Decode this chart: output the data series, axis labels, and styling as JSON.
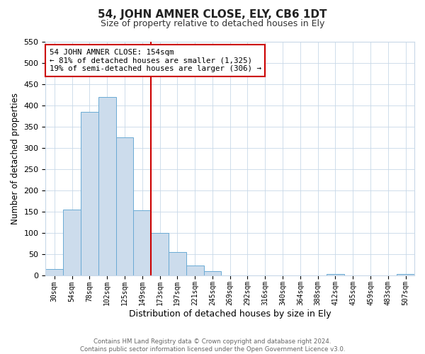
{
  "title": "54, JOHN AMNER CLOSE, ELY, CB6 1DT",
  "subtitle": "Size of property relative to detached houses in Ely",
  "xlabel": "Distribution of detached houses by size in Ely",
  "ylabel": "Number of detached properties",
  "bar_labels": [
    "30sqm",
    "54sqm",
    "78sqm",
    "102sqm",
    "125sqm",
    "149sqm",
    "173sqm",
    "197sqm",
    "221sqm",
    "245sqm",
    "269sqm",
    "292sqm",
    "316sqm",
    "340sqm",
    "364sqm",
    "388sqm",
    "412sqm",
    "435sqm",
    "459sqm",
    "483sqm",
    "507sqm"
  ],
  "bar_values": [
    15,
    155,
    385,
    420,
    325,
    152,
    100,
    55,
    22,
    10,
    0,
    0,
    0,
    0,
    0,
    0,
    2,
    0,
    0,
    0,
    2
  ],
  "bar_color": "#ccdcec",
  "bar_edge_color": "#6aaad4",
  "vline_index": 5.5,
  "vline_color": "#cc0000",
  "ylim": [
    0,
    550
  ],
  "yticks": [
    0,
    50,
    100,
    150,
    200,
    250,
    300,
    350,
    400,
    450,
    500,
    550
  ],
  "annotation_line1": "54 JOHN AMNER CLOSE: 154sqm",
  "annotation_line2": "← 81% of detached houses are smaller (1,325)",
  "annotation_line3": "19% of semi-detached houses are larger (306) →",
  "annotation_box_color": "#ffffff",
  "annotation_box_edge": "#cc0000",
  "footer_line1": "Contains HM Land Registry data © Crown copyright and database right 2024.",
  "footer_line2": "Contains public sector information licensed under the Open Government Licence v3.0.",
  "bg_color": "#ffffff",
  "grid_color": "#c8d8e8"
}
